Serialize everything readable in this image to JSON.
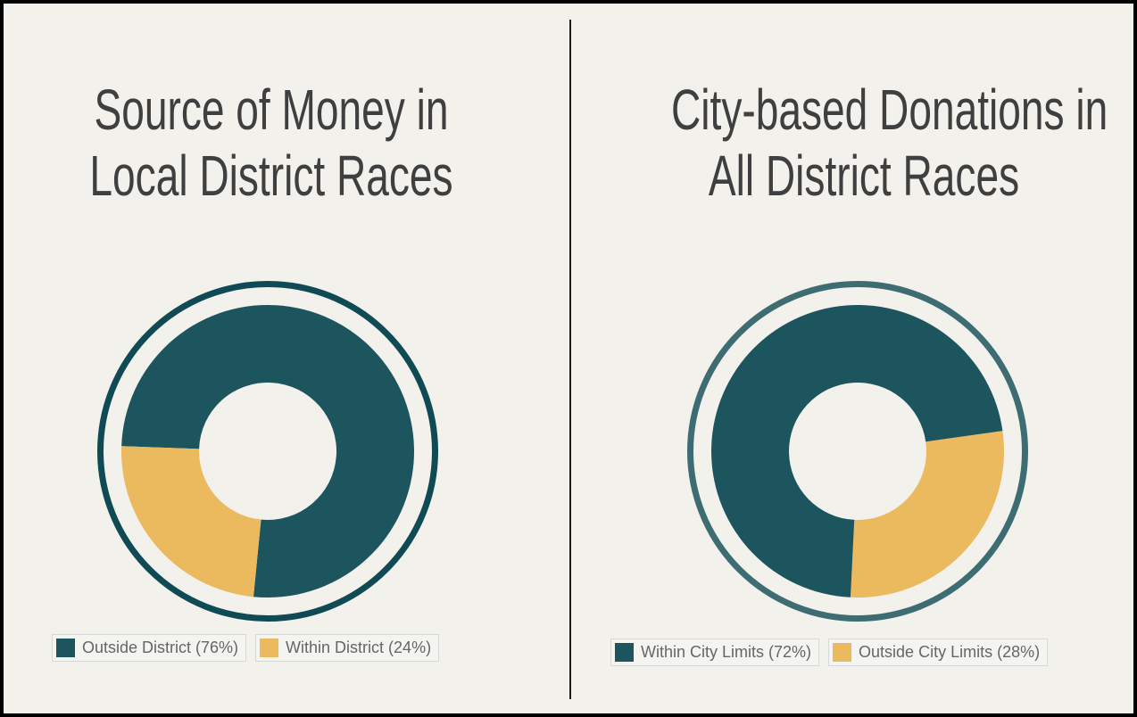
{
  "chart_data": [
    {
      "type": "pie",
      "variant": "donut",
      "title_lines": [
        "Source of Money in",
        "Local District Races"
      ],
      "start_angle_deg": 182,
      "series": [
        {
          "name": "Outside District",
          "value": 76,
          "color": "#1d555e",
          "legend": "Outside District (76%)"
        },
        {
          "name": "Within District",
          "value": 24,
          "color": "#ebb95e",
          "legend": "Within District (24%)"
        }
      ],
      "ring_color": "#0f4a55"
    },
    {
      "type": "pie",
      "variant": "donut",
      "title_lines": [
        "City-based Donations in",
        "All District Races"
      ],
      "start_angle_deg": -8,
      "series": [
        {
          "name": "Outside City Limits",
          "value": 28,
          "color": "#ebb95e",
          "legend": "Outside City Limits (28%)"
        },
        {
          "name": "Within City Limits",
          "value": 72,
          "color": "#1d555e",
          "legend": "Within City Limits (72%)"
        }
      ],
      "legend_order": [
        1,
        0
      ],
      "ring_color": "#3d6d72"
    }
  ]
}
